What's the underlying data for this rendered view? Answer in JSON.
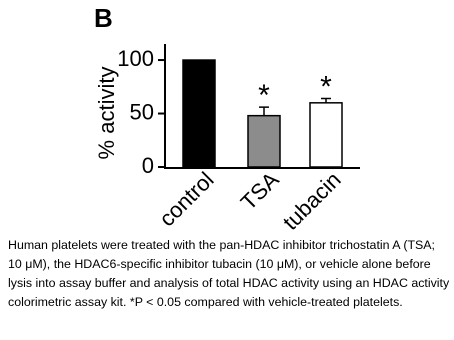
{
  "chart_data": {
    "type": "bar",
    "panel_label": "B",
    "ylabel": "% activity",
    "categories": [
      "control",
      "TSA",
      "tubacin"
    ],
    "values": [
      100,
      48,
      60
    ],
    "errors": [
      null,
      8,
      4
    ],
    "colors": [
      "#000000",
      "#8c8c8c",
      "#ffffff"
    ],
    "significance": [
      null,
      "*",
      "*"
    ],
    "ylim": [
      0,
      115
    ],
    "yticks": [
      0,
      50,
      100
    ],
    "grid": false
  },
  "caption": "Human platelets were treated with the pan-HDAC inhibitor trichostatin A (TSA; 10 μM), the HDAC6-specific inhibitor tubacin (10 μM), or vehicle alone before lysis into assay buffer and analysis of total HDAC activity using an HDAC activity colorimetric assay kit. *P  < 0.05 compared with vehicle-treated platelets."
}
